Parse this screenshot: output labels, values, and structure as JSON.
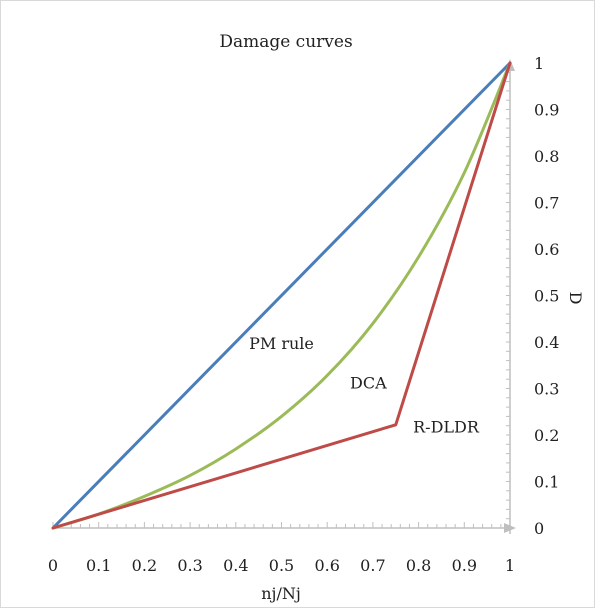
{
  "chart_data": {
    "type": "line",
    "title": "Damage curves",
    "xlabel": "nj/Nj",
    "ylabel": "D",
    "xlim": [
      0,
      1
    ],
    "ylim": [
      0,
      1
    ],
    "x_ticks": [
      "0",
      "0.1",
      "0.2",
      "0.3",
      "0.4",
      "0.5",
      "0.6",
      "0.7",
      "0.8",
      "0.9",
      "1"
    ],
    "y_ticks": [
      "0",
      "0.1",
      "0.2",
      "0.3",
      "0.4",
      "0.5",
      "0.6",
      "0.7",
      "0.8",
      "0.9",
      "1"
    ],
    "y_axis_side": "right",
    "grid": false,
    "legend": "none",
    "series": [
      {
        "name": "PM  rule",
        "color": "#4a7ebb",
        "points": [
          [
            0,
            0
          ],
          [
            1,
            1
          ]
        ]
      },
      {
        "name": "DCA",
        "color": "#9bbb59",
        "points": [
          [
            0,
            0
          ],
          [
            0.1,
            0.03
          ],
          [
            0.2,
            0.068
          ],
          [
            0.3,
            0.113
          ],
          [
            0.4,
            0.17
          ],
          [
            0.5,
            0.24
          ],
          [
            0.6,
            0.328
          ],
          [
            0.7,
            0.44
          ],
          [
            0.8,
            0.583
          ],
          [
            0.9,
            0.764
          ],
          [
            1,
            1
          ]
        ]
      },
      {
        "name": "R-DLDR",
        "color": "#be4b48",
        "points": [
          [
            0,
            0
          ],
          [
            0.75,
            0.222
          ],
          [
            1,
            1
          ]
        ]
      }
    ],
    "annotations": [
      {
        "text": "PM  rule",
        "x": 0.5,
        "y": 0.385
      },
      {
        "text": "DCA",
        "x": 0.69,
        "y": 0.3
      },
      {
        "text": "R-DLDR",
        "x": 0.86,
        "y": 0.205
      }
    ]
  }
}
